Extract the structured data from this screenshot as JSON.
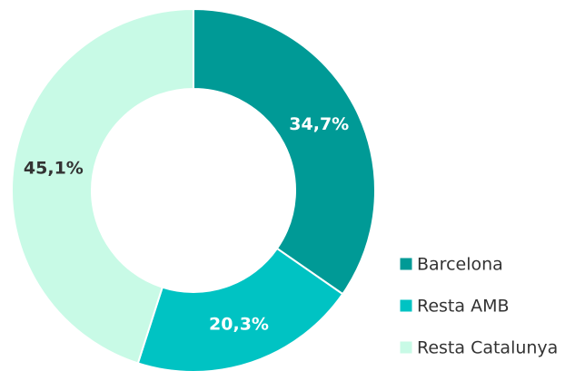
{
  "chart_data": {
    "type": "donut",
    "categories": [
      "Barcelona",
      "Resta AMB",
      "Resta Catalunya"
    ],
    "values": [
      34.7,
      20.3,
      45.1
    ],
    "value_labels": [
      "34,7%",
      "20,3%",
      "45,1%"
    ],
    "colors": [
      "#009a96",
      "#00c3c3",
      "#c8fae6"
    ],
    "legend": "bottom-right"
  }
}
